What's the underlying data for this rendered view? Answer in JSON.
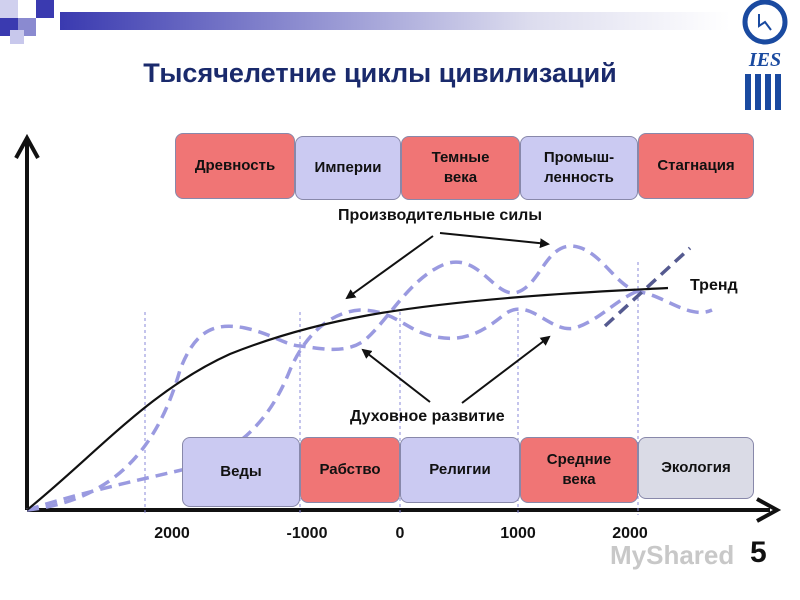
{
  "title": "Тысячелетние циклы цивилизаций",
  "top_boxes": [
    {
      "label": "Древность",
      "color": "#f07575"
    },
    {
      "label": "Империи",
      "color": "#cbcaf2"
    },
    {
      "label": "Темные века",
      "color": "#f07575"
    },
    {
      "label": "Промыш-ленность",
      "color": "#cbcaf2"
    },
    {
      "label": "Стагнация",
      "color": "#f07575"
    }
  ],
  "bottom_boxes": [
    {
      "label": "Веды",
      "color": "#cbcaf2"
    },
    {
      "label": "Рабство",
      "color": "#f07575"
    },
    {
      "label": "Религии",
      "color": "#cbcaf2"
    },
    {
      "label": "Средние века",
      "color": "#f07575"
    },
    {
      "label": "Экология",
      "color": "#dadbe6"
    }
  ],
  "labels": {
    "productive_forces": "Производительные силы",
    "trend": "Тренд",
    "spiritual": "Духовное развитие"
  },
  "x_ticks": [
    "2000",
    "-1000",
    "0",
    "1000",
    "2000"
  ],
  "watermark": "MyShared",
  "slide_number": "5",
  "logo": {
    "text": "IES",
    "color": "#1a4aa0"
  },
  "colors": {
    "dashed": "#9a9ae0",
    "dashed_dark": "#555a90",
    "trend": "#111111",
    "header_squares": "#3a3ab0"
  }
}
